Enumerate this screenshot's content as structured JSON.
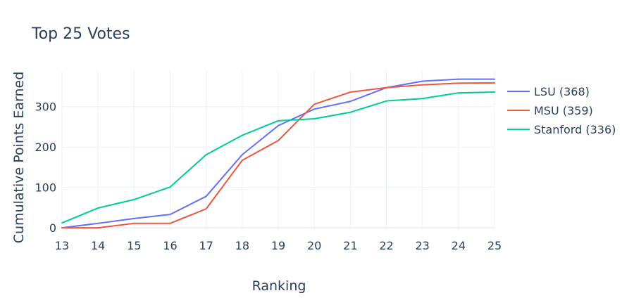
{
  "chart_data": {
    "type": "line",
    "title": "Top 25 Votes",
    "xlabel": "Ranking",
    "ylabel": "Cumulative Points Earned",
    "x": [
      13,
      14,
      15,
      16,
      17,
      18,
      19,
      20,
      21,
      22,
      23,
      24,
      25
    ],
    "xlim": [
      13,
      25
    ],
    "ylim": [
      -5,
      390
    ],
    "yticks": [
      0,
      100,
      200,
      300
    ],
    "grid": true,
    "legend_position": "right",
    "series": [
      {
        "name": "LSU (368)",
        "color": "#636efa",
        "values": [
          0,
          11,
          23,
          33,
          78,
          181,
          253,
          294,
          313,
          347,
          363,
          368,
          368
        ]
      },
      {
        "name": "MSU (359)",
        "color": "#ef553b",
        "values": [
          0,
          0,
          11,
          11,
          47,
          167,
          216,
          306,
          336,
          347,
          354,
          358,
          359
        ]
      },
      {
        "name": "Stanford (336)",
        "color": "#00cc96",
        "values": [
          12,
          49,
          70,
          101,
          181,
          229,
          265,
          270,
          286,
          314,
          320,
          334,
          336
        ]
      }
    ]
  }
}
